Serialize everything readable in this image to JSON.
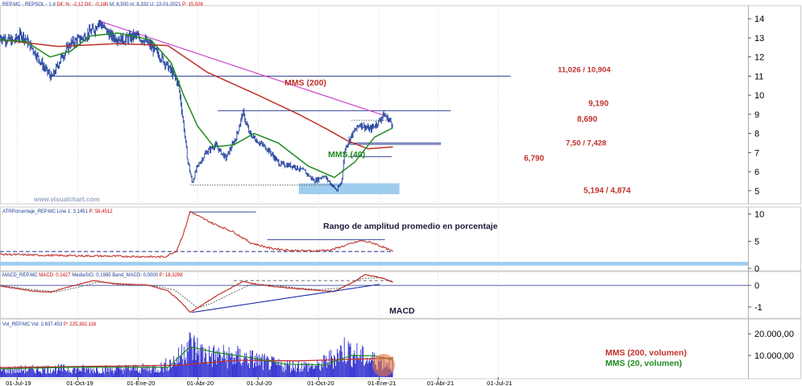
{
  "header": {
    "main": [
      {
        "text": "REP.MC - REPSOL - 1 d",
        "color": "#1a3a9a"
      },
      {
        "text": "Dif. %: -2,12",
        "color": "#cc0000"
      },
      {
        "text": "Dif.: -0,180",
        "color": "#cc0000"
      },
      {
        "text": "M: 8,500",
        "color": "#1a3a9a"
      },
      {
        "text": "m: 8,332",
        "color": "#1a3a9a"
      },
      {
        "text": "U: 22-01-2021",
        "color": "#1a3a9a"
      },
      {
        "text": "P: 15,926",
        "color": "#cc0000"
      }
    ],
    "atr": [
      {
        "text": "ATRPorcentaje_REP.MC",
        "color": "#1a3a9a"
      },
      {
        "text": "Line 1: 3,1451",
        "color": "#1a3a9a"
      },
      {
        "text": "P: 58,4512",
        "color": "#cc0000"
      }
    ],
    "macd": [
      {
        "text": "MACD_REP.MC",
        "color": "#1a3a9a"
      },
      {
        "text": "MACD: 0,1427",
        "color": "#cc0000"
      },
      {
        "text": "MediaSIG: 0,1985",
        "color": "#1a3a9a"
      },
      {
        "text": "Band_MACD: 0,0000",
        "color": "#1a3a9a"
      },
      {
        "text": "P: 18,3298",
        "color": "#cc0000"
      }
    ],
    "vol": [
      {
        "text": "Vol_REP.MC",
        "color": "#1a3a9a"
      },
      {
        "text": "Vol: 2.637.453",
        "color": "#1a3a9a"
      },
      {
        "text": "P: 225.382.116",
        "color": "#cc0000"
      }
    ]
  },
  "watermark": "www.visualchart.com",
  "colors": {
    "price": "#1a3a9a",
    "mms200": "#c0302a",
    "mms40": "#1f8a1f",
    "trendline": "#cc44cc",
    "levels": "#1a2a8a",
    "zone": "#9fcdee",
    "annot_red": "#c0302a",
    "annot_green": "#1f8a1f",
    "annot_dark": "#1a1a3a",
    "grid": "#d8d8d8"
  },
  "chart_data": [
    {
      "type": "line",
      "panel": "price",
      "yticks": [
        5,
        6,
        7,
        8,
        9,
        10,
        11,
        12,
        13,
        14
      ],
      "ylim": [
        4.4,
        14.6
      ],
      "xticks": [
        "01-Jul-19",
        "01-Oct-19",
        "01-Ene-20",
        "01-Abr-20",
        "01-Jul-20",
        "01-Oct-20",
        "01-Ene-21",
        "01-Abr-21",
        "01-Jul-21"
      ],
      "price_anchors": [
        [
          "2019-06-05",
          13.05
        ],
        [
          "2019-06-25",
          12.8
        ],
        [
          "2019-07-08",
          13.2
        ],
        [
          "2019-07-25",
          12.4
        ],
        [
          "2019-08-12",
          11.4
        ],
        [
          "2019-08-23",
          10.9
        ],
        [
          "2019-09-05",
          11.9
        ],
        [
          "2019-09-20",
          12.7
        ],
        [
          "2019-10-08",
          13.0
        ],
        [
          "2019-10-28",
          13.5
        ],
        [
          "2019-11-01",
          13.9
        ],
        [
          "2019-11-20",
          13.1
        ],
        [
          "2019-12-10",
          12.9
        ],
        [
          "2019-12-27",
          13.1
        ],
        [
          "2020-01-10",
          12.9
        ],
        [
          "2020-01-24",
          12.4
        ],
        [
          "2020-02-07",
          11.9
        ],
        [
          "2020-02-21",
          11.2
        ],
        [
          "2020-03-02",
          10.6
        ],
        [
          "2020-03-09",
          8.7
        ],
        [
          "2020-03-16",
          6.6
        ],
        [
          "2020-03-23",
          5.4
        ],
        [
          "2020-03-30",
          6.2
        ],
        [
          "2020-04-13",
          7.0
        ],
        [
          "2020-04-27",
          7.4
        ],
        [
          "2020-05-13",
          6.7
        ],
        [
          "2020-05-29",
          7.8
        ],
        [
          "2020-06-08",
          9.1
        ],
        [
          "2020-06-18",
          8.0
        ],
        [
          "2020-06-30",
          7.6
        ],
        [
          "2020-07-15",
          7.2
        ],
        [
          "2020-08-03",
          6.4
        ],
        [
          "2020-08-24",
          6.3
        ],
        [
          "2020-09-10",
          6.0
        ],
        [
          "2020-09-25",
          5.5
        ],
        [
          "2020-10-09",
          5.8
        ],
        [
          "2020-10-29",
          5.0
        ],
        [
          "2020-11-05",
          5.5
        ],
        [
          "2020-11-10",
          7.2
        ],
        [
          "2020-11-20",
          7.9
        ],
        [
          "2020-12-03",
          8.5
        ],
        [
          "2020-12-18",
          8.2
        ],
        [
          "2020-12-31",
          8.6
        ],
        [
          "2021-01-08",
          9.0
        ],
        [
          "2021-01-22",
          8.5
        ]
      ],
      "mms200_anchors": [
        [
          "2019-06-05",
          12.9
        ],
        [
          "2019-09-01",
          12.55
        ],
        [
          "2019-12-01",
          12.7
        ],
        [
          "2020-02-15",
          12.6
        ],
        [
          "2020-04-15",
          11.2
        ],
        [
          "2020-07-01",
          10.0
        ],
        [
          "2020-09-01",
          9.0
        ],
        [
          "2020-10-15",
          8.2
        ],
        [
          "2020-11-15",
          7.6
        ],
        [
          "2020-12-15",
          7.2
        ],
        [
          "2021-01-22",
          7.3
        ]
      ],
      "mms40_anchors": [
        [
          "2019-06-05",
          12.9
        ],
        [
          "2019-07-15",
          12.8
        ],
        [
          "2019-08-20",
          12.0
        ],
        [
          "2019-09-20",
          12.3
        ],
        [
          "2019-10-20",
          13.1
        ],
        [
          "2019-12-01",
          13.25
        ],
        [
          "2020-01-20",
          12.9
        ],
        [
          "2020-02-20",
          11.7
        ],
        [
          "2020-03-10",
          10.0
        ],
        [
          "2020-03-31",
          8.4
        ],
        [
          "2020-04-25",
          7.3
        ],
        [
          "2020-05-25",
          7.4
        ],
        [
          "2020-06-25",
          8.0
        ],
        [
          "2020-08-01",
          7.5
        ],
        [
          "2020-09-15",
          6.3
        ],
        [
          "2020-10-25",
          5.7
        ],
        [
          "2020-11-25",
          6.5
        ],
        [
          "2020-12-25",
          7.8
        ],
        [
          "2021-01-22",
          8.3
        ]
      ],
      "trendline": [
        [
          "2019-11-01",
          13.9
        ],
        [
          "2021-01-08",
          8.95
        ]
      ],
      "levels": [
        {
          "value": 11.0,
          "from": "2019-08-20",
          "to": "2021-07-20",
          "label": "11,026 / 10,904",
          "style": "solid"
        },
        {
          "value": 9.19,
          "from": "2020-05-01",
          "to": "2021-04-20",
          "label": "9,190",
          "style": "solid"
        },
        {
          "value": 8.69,
          "from": "2020-11-20",
          "to": "2021-01-15",
          "label": "8,690",
          "style": "dotted"
        },
        {
          "value": 7.5,
          "from": "2020-11-15",
          "to": "2021-04-05",
          "label": "7,50 / 7,428",
          "style": "solid"
        },
        {
          "value": 6.79,
          "from": "2020-11-15",
          "to": "2021-01-20",
          "label": "6,790",
          "style": "solid"
        },
        {
          "value": 5.3,
          "from": "2020-03-20",
          "to": "2020-11-05",
          "label": "",
          "style": "dotted"
        }
      ],
      "zone": {
        "from": "2020-09-01",
        "to": "2021-02-01",
        "low": 4.874,
        "high": 5.194,
        "label": "5,194 / 4,874"
      },
      "labels": {
        "mms200": "MMS (200)",
        "mms40": "MMS (40)"
      }
    },
    {
      "type": "line",
      "panel": "atr",
      "title": "Rango de amplitud promedio en porcentaje",
      "yticks": [
        0,
        5,
        10
      ],
      "ylim": [
        -0.3,
        11
      ],
      "anchors": [
        [
          "2019-06-05",
          2.6
        ],
        [
          "2019-08-15",
          2.4
        ],
        [
          "2019-10-15",
          2.3
        ],
        [
          "2019-12-15",
          2.2
        ],
        [
          "2020-02-10",
          2.1
        ],
        [
          "2020-02-28",
          3.2
        ],
        [
          "2020-03-10",
          6.5
        ],
        [
          "2020-03-20",
          10.5
        ],
        [
          "2020-04-05",
          9.4
        ],
        [
          "2020-04-25",
          8.2
        ],
        [
          "2020-05-25",
          6.7
        ],
        [
          "2020-06-20",
          4.7
        ],
        [
          "2020-07-20",
          3.7
        ],
        [
          "2020-08-20",
          3.3
        ],
        [
          "2020-09-20",
          3.2
        ],
        [
          "2020-10-20",
          3.4
        ],
        [
          "2020-11-15",
          4.4
        ],
        [
          "2020-12-05",
          5.1
        ],
        [
          "2020-12-25",
          4.6
        ],
        [
          "2021-01-22",
          3.1
        ]
      ],
      "hlines": [
        {
          "value": 10.4,
          "from": "2020-03-18",
          "to": "2020-06-28",
          "style": "solid",
          "color": "#1a2a8a"
        },
        {
          "value": 5.3,
          "from": "2020-07-15",
          "to": "2021-01-10",
          "style": "solid",
          "color": "#1a2a8a"
        },
        {
          "value": 3.1,
          "from": "2019-06-05",
          "to": "2021-01-22",
          "style": "dashed",
          "color": "#1a2a8a"
        }
      ],
      "zone": {
        "low": 0.5,
        "high": 1.2
      }
    },
    {
      "type": "line",
      "panel": "macd",
      "title": "MACD",
      "yticks": [
        -1,
        0
      ],
      "ylim": [
        -1.45,
        0.6
      ],
      "macd_anchors": [
        [
          "2019-06-05",
          -0.02
        ],
        [
          "2019-07-20",
          -0.25
        ],
        [
          "2019-08-20",
          -0.32
        ],
        [
          "2019-09-20",
          -0.05
        ],
        [
          "2019-10-25",
          0.22
        ],
        [
          "2019-12-01",
          0.05
        ],
        [
          "2020-01-15",
          0.02
        ],
        [
          "2020-02-15",
          -0.25
        ],
        [
          "2020-03-05",
          -0.75
        ],
        [
          "2020-03-20",
          -1.25
        ],
        [
          "2020-04-05",
          -0.95
        ],
        [
          "2020-05-01",
          -0.45
        ],
        [
          "2020-06-08",
          0.18
        ],
        [
          "2020-07-10",
          0.0
        ],
        [
          "2020-08-15",
          -0.12
        ],
        [
          "2020-09-15",
          -0.2
        ],
        [
          "2020-10-25",
          -0.28
        ],
        [
          "2020-11-25",
          0.18
        ],
        [
          "2020-12-10",
          0.5
        ],
        [
          "2021-01-05",
          0.35
        ],
        [
          "2021-01-22",
          0.14
        ]
      ],
      "signal_anchors": [
        [
          "2019-06-05",
          0.0
        ],
        [
          "2019-07-25",
          -0.2
        ],
        [
          "2019-08-30",
          -0.3
        ],
        [
          "2019-09-30",
          -0.1
        ],
        [
          "2019-11-01",
          0.15
        ],
        [
          "2019-12-10",
          0.08
        ],
        [
          "2020-01-20",
          0.0
        ],
        [
          "2020-02-25",
          -0.2
        ],
        [
          "2020-03-15",
          -0.65
        ],
        [
          "2020-03-31",
          -1.05
        ],
        [
          "2020-04-20",
          -0.85
        ],
        [
          "2020-05-20",
          -0.4
        ],
        [
          "2020-06-20",
          0.05
        ],
        [
          "2020-07-20",
          0.02
        ],
        [
          "2020-08-25",
          -0.1
        ],
        [
          "2020-10-01",
          -0.2
        ],
        [
          "2020-11-05",
          -0.12
        ],
        [
          "2020-12-05",
          0.32
        ],
        [
          "2021-01-01",
          0.35
        ],
        [
          "2021-01-22",
          0.2
        ]
      ],
      "trendline": [
        [
          "2020-03-23",
          -1.25
        ],
        [
          "2021-01-02",
          0.05
        ]
      ],
      "hline_dashed": {
        "value": 0.22,
        "from": "2020-05-25",
        "to": "2021-01-15"
      }
    },
    {
      "type": "bar",
      "panel": "volume",
      "yticks": [
        10000,
        20000
      ],
      "ytick_labels": [
        "10.000,00",
        "20.000,00"
      ],
      "ylim": [
        0,
        26000
      ],
      "volume_anchors": [
        [
          "2019-06-05",
          3500
        ],
        [
          "2019-08-15",
          4200
        ],
        [
          "2019-11-01",
          4000
        ],
        [
          "2020-02-01",
          4500
        ],
        [
          "2020-03-01",
          9000
        ],
        [
          "2020-03-15",
          17000
        ],
        [
          "2020-04-15",
          11000
        ],
        [
          "2020-06-10",
          10000
        ],
        [
          "2020-08-01",
          6000
        ],
        [
          "2020-10-01",
          5500
        ],
        [
          "2020-11-10",
          14000
        ],
        [
          "2020-12-15",
          9000
        ],
        [
          "2021-01-22",
          7000
        ]
      ],
      "mms200_anchors": [
        [
          "2019-06-05",
          4400
        ],
        [
          "2020-03-01",
          5500
        ],
        [
          "2020-06-01",
          7800
        ],
        [
          "2020-09-01",
          7500
        ],
        [
          "2021-01-22",
          8800
        ]
      ],
      "mms20_anchors": [
        [
          "2019-06-05",
          3800
        ],
        [
          "2019-10-01",
          4600
        ],
        [
          "2020-02-15",
          4500
        ],
        [
          "2020-03-20",
          14000
        ],
        [
          "2020-04-25",
          11500
        ],
        [
          "2020-06-15",
          9200
        ],
        [
          "2020-08-10",
          6000
        ],
        [
          "2020-10-10",
          5600
        ],
        [
          "2020-11-20",
          10000
        ],
        [
          "2020-12-25",
          9800
        ],
        [
          "2021-01-22",
          8000
        ]
      ],
      "legend": [
        "MMS (200, volumen)",
        "MMS (20, volumen)"
      ]
    }
  ]
}
